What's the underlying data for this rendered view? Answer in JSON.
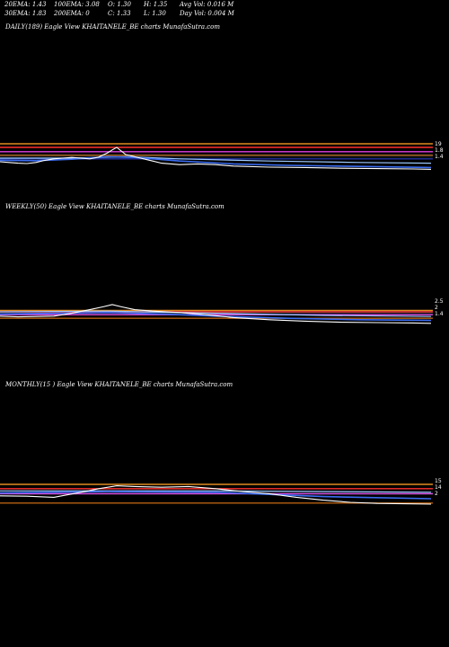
{
  "stats": [
    {
      "text": "20EMA: 1.43",
      "col": 0,
      "row": 0
    },
    {
      "text": "100EMA: 3.08",
      "col": 1,
      "row": 0
    },
    {
      "text": "O: 1.30",
      "col": 2,
      "row": 0
    },
    {
      "text": "H: 1.35",
      "col": 3,
      "row": 0
    },
    {
      "text": "Avg Vol: 0.016  M",
      "col": 4,
      "row": 0
    },
    {
      "text": "30EMA: 1.83",
      "col": 0,
      "row": 1
    },
    {
      "text": "200EMA: 0",
      "col": 1,
      "row": 1
    },
    {
      "text": "C: 1.33",
      "col": 2,
      "row": 1
    },
    {
      "text": "L: 1.30",
      "col": 3,
      "row": 1
    },
    {
      "text": "Day Vol: 0.004  M",
      "col": 4,
      "row": 1
    }
  ],
  "colors": {
    "price": "#ffffff",
    "ema_blue": "#3a6cf0",
    "ema_lightblue": "#9cc8ff",
    "ema_magenta": "#e040e0",
    "ema_red": "#ff3030",
    "ema_orange": "#e08a20",
    "ema_darkorange": "#b86010",
    "ema_navy": "#2030a0"
  },
  "chart_data": [
    {
      "type": "line",
      "label": "DAILY(189) Eagle   View  KHAITANELE_BE charts MunafaSutra.com",
      "price": [
        [
          0,
          -1.0
        ],
        [
          10,
          -1.2
        ],
        [
          20,
          -1.4
        ],
        [
          30,
          -1.5
        ],
        [
          40,
          -1.2
        ],
        [
          50,
          -0.6
        ],
        [
          60,
          -0.2
        ],
        [
          70,
          0.0
        ],
        [
          80,
          0.2
        ],
        [
          90,
          0.0
        ],
        [
          100,
          -0.2
        ],
        [
          110,
          0.3
        ],
        [
          120,
          1.5
        ],
        [
          125,
          2.3
        ],
        [
          130,
          3.0
        ],
        [
          135,
          2.0
        ],
        [
          140,
          1.0
        ],
        [
          150,
          0.4
        ],
        [
          160,
          -0.2
        ],
        [
          170,
          -0.8
        ],
        [
          180,
          -1.4
        ],
        [
          200,
          -1.8
        ],
        [
          220,
          -1.6
        ],
        [
          240,
          -1.8
        ],
        [
          260,
          -2.2
        ],
        [
          300,
          -2.5
        ],
        [
          340,
          -2.6
        ],
        [
          380,
          -2.8
        ],
        [
          420,
          -2.9
        ],
        [
          460,
          -3.0
        ],
        [
          480,
          -3.1
        ]
      ],
      "ema_short": [
        [
          0,
          -0.6
        ],
        [
          40,
          -0.7
        ],
        [
          80,
          -0.3
        ],
        [
          120,
          0.4
        ],
        [
          150,
          0.2
        ],
        [
          200,
          -0.8
        ],
        [
          260,
          -1.6
        ],
        [
          320,
          -2.0
        ],
        [
          400,
          -2.3
        ],
        [
          480,
          -2.6
        ]
      ],
      "ema_mid": [
        [
          0,
          0.0
        ],
        [
          80,
          0.0
        ],
        [
          140,
          0.4
        ],
        [
          200,
          -0.2
        ],
        [
          300,
          -0.8
        ],
        [
          400,
          -1.2
        ],
        [
          480,
          -1.4
        ]
      ],
      "levels": [
        4.0,
        3.0,
        1.8,
        0.8,
        -0.2
      ],
      "ticks": [
        "19",
        "1.8",
        "1.4"
      ]
    },
    {
      "type": "line",
      "label": "WEEKLY(50) Eagle   View  KHAITANELE_BE charts MunafaSutra.com",
      "price": [
        [
          0,
          -0.2
        ],
        [
          20,
          -0.4
        ],
        [
          40,
          -0.3
        ],
        [
          60,
          -0.2
        ],
        [
          80,
          0.6
        ],
        [
          100,
          1.6
        ],
        [
          115,
          2.4
        ],
        [
          125,
          3.0
        ],
        [
          135,
          2.4
        ],
        [
          150,
          1.6
        ],
        [
          170,
          1.2
        ],
        [
          200,
          0.8
        ],
        [
          230,
          0.2
        ],
        [
          260,
          -0.6
        ],
        [
          300,
          -1.2
        ],
        [
          340,
          -1.6
        ],
        [
          380,
          -1.9
        ],
        [
          420,
          -2.0
        ],
        [
          460,
          -2.1
        ],
        [
          480,
          -2.2
        ]
      ],
      "ema_short": [
        [
          0,
          0.4
        ],
        [
          60,
          0.6
        ],
        [
          120,
          0.8
        ],
        [
          180,
          0.4
        ],
        [
          240,
          -0.2
        ],
        [
          320,
          -0.8
        ],
        [
          400,
          -1.2
        ],
        [
          480,
          -1.4
        ]
      ],
      "ema_mid": [
        [
          0,
          1.0
        ],
        [
          120,
          1.2
        ],
        [
          240,
          0.6
        ],
        [
          360,
          0.0
        ],
        [
          480,
          -0.3
        ]
      ],
      "levels": [
        1.4,
        1.0,
        0.2,
        -0.8
      ],
      "ticks": [
        "2.5",
        "2",
        "1.4"
      ]
    },
    {
      "type": "line",
      "label": "MONTHLY(15                                       ) Eagle   View  KHAITANELE_BE charts MunafaSutra.com",
      "price": [
        [
          0,
          -0.2
        ],
        [
          30,
          -0.3
        ],
        [
          60,
          -0.6
        ],
        [
          90,
          0.8
        ],
        [
          110,
          1.8
        ],
        [
          130,
          2.6
        ],
        [
          150,
          2.4
        ],
        [
          180,
          2.2
        ],
        [
          210,
          2.4
        ],
        [
          240,
          1.8
        ],
        [
          270,
          1.0
        ],
        [
          300,
          0.4
        ],
        [
          330,
          -0.6
        ],
        [
          360,
          -1.4
        ],
        [
          390,
          -2.0
        ],
        [
          420,
          -2.3
        ],
        [
          450,
          -2.4
        ],
        [
          480,
          -2.5
        ]
      ],
      "ema_short": [
        [
          0,
          0.6
        ],
        [
          120,
          1.0
        ],
        [
          240,
          0.8
        ],
        [
          360,
          -0.4
        ],
        [
          480,
          -1.0
        ]
      ],
      "ema_mid": [
        [
          0,
          1.2
        ],
        [
          240,
          1.2
        ],
        [
          480,
          0.8
        ]
      ],
      "levels": [
        3.0,
        1.8,
        0.4,
        -2.2
      ],
      "ticks": [
        "15",
        "14",
        "2"
      ]
    }
  ]
}
